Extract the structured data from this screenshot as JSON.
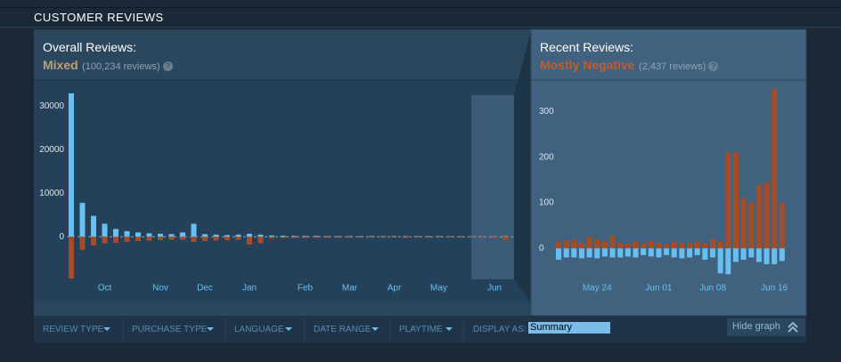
{
  "header": {
    "title": "CUSTOMER REVIEWS"
  },
  "overall": {
    "label": "Overall Reviews:",
    "rating": "Mixed",
    "count": "(100,234 reviews)",
    "help": "?"
  },
  "recent": {
    "label": "Recent Reviews:",
    "rating": "Mostly Negative",
    "count": "(2,437 reviews)",
    "help": "?"
  },
  "chart_data": [
    {
      "type": "bar",
      "categories": [
        null,
        null,
        null,
        "Oct",
        null,
        null,
        null,
        null,
        "Nov",
        null,
        null,
        null,
        "Dec",
        null,
        null,
        null,
        "Jan",
        null,
        null,
        null,
        null,
        "Feb",
        null,
        null,
        null,
        "Mar",
        null,
        null,
        null,
        "Apr",
        null,
        null,
        null,
        "May",
        null,
        null,
        null,
        null,
        "Jun",
        null
      ],
      "series": [
        {
          "color": "#66c0f4",
          "values": [
            33000,
            7800,
            4800,
            3000,
            1800,
            1300,
            1000,
            800,
            700,
            600,
            1000,
            3000,
            600,
            500,
            400,
            500,
            700,
            500,
            300,
            250,
            200,
            200,
            200,
            150,
            150,
            150,
            150,
            150,
            150,
            150,
            150,
            150,
            150,
            150,
            100,
            100,
            100,
            100,
            100,
            150
          ]
        },
        {
          "color": "#a34c25",
          "values": [
            -9600,
            -3000,
            -2000,
            -1500,
            -1400,
            -1200,
            -1000,
            -900,
            -800,
            -700,
            -700,
            -1200,
            -1000,
            -900,
            -800,
            -700,
            -1800,
            -1500,
            -400,
            -300,
            -300,
            -300,
            -250,
            -250,
            -250,
            -250,
            -200,
            -200,
            -200,
            -200,
            -300,
            -200,
            -200,
            -200,
            -200,
            -200,
            -200,
            -200,
            -300,
            -800
          ]
        }
      ],
      "ylim": [
        -11000,
        34000
      ],
      "yticks": [
        0,
        10000,
        20000,
        30000
      ]
    },
    {
      "type": "bar",
      "categories": [
        null,
        null,
        null,
        null,
        null,
        "May 24",
        null,
        null,
        null,
        null,
        null,
        null,
        null,
        "Jun 01",
        null,
        null,
        null,
        null,
        null,
        null,
        "Jun 08",
        null,
        null,
        null,
        null,
        null,
        null,
        null,
        "Jun 16",
        null
      ],
      "series": [
        {
          "color": "#66c0f4",
          "values": [
            25,
            20,
            20,
            22,
            20,
            22,
            18,
            20,
            20,
            18,
            20,
            15,
            18,
            20,
            15,
            20,
            22,
            20,
            15,
            25,
            20,
            55,
            57,
            30,
            25,
            20,
            30,
            35,
            35,
            28
          ]
        },
        {
          "color": "#a34c25",
          "values": [
            -15,
            -18,
            -20,
            -12,
            -25,
            -20,
            -15,
            -28,
            -12,
            -10,
            -15,
            -10,
            -15,
            -12,
            -10,
            -15,
            -12,
            -12,
            -15,
            -12,
            -20,
            -15,
            -210,
            -210,
            -110,
            -100,
            -140,
            -145,
            -350,
            -100
          ]
        }
      ],
      "ylim": [
        70,
        -350
      ],
      "yticks": [
        0,
        {
          "value": -100,
          "label": "100"
        },
        {
          "value": -200,
          "label": "200"
        },
        {
          "value": -300,
          "label": "300"
        }
      ]
    }
  ],
  "filters": [
    "REVIEW TYPE",
    "PURCHASE TYPE",
    "LANGUAGE",
    "DATE RANGE",
    "PLAYTIME"
  ],
  "display": {
    "label": "DISPLAY AS:",
    "selected": "Summary"
  },
  "hide_graph": "Hide graph"
}
